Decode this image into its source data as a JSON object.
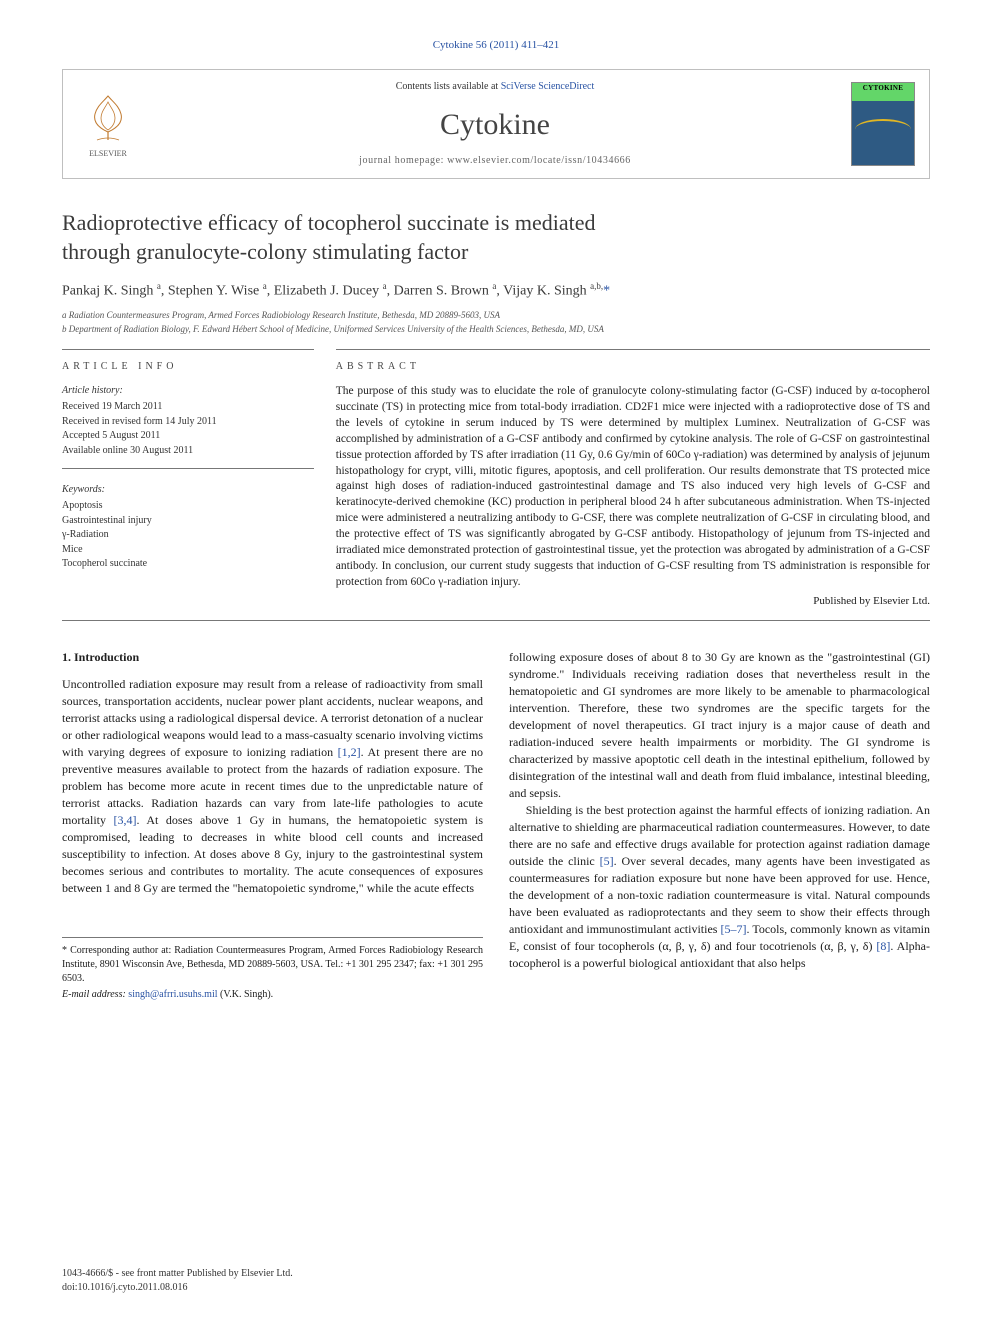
{
  "citation": "Cytokine 56 (2011) 411–421",
  "masthead": {
    "contents_prefix": "Contents lists available at ",
    "contents_link": "SciVerse ScienceDirect",
    "journal": "Cytokine",
    "homepage_prefix": "journal homepage: ",
    "homepage_url": "www.elsevier.com/locate/issn/10434666",
    "publisher": "ELSEVIER",
    "cover_label": "CYTOKINE"
  },
  "title_line1": "Radioprotective efficacy of tocopherol succinate is mediated",
  "title_line2": "through granulocyte-colony stimulating factor",
  "authors_html": "Pankaj K. Singh <sup>a</sup>, Stephen Y. Wise <sup>a</sup>, Elizabeth J. Ducey <sup>a</sup>, Darren S. Brown <sup>a</sup>, Vijay K. Singh <sup>a,b,</sup><span class=\"star\">*</span>",
  "affiliations": [
    "a Radiation Countermeasures Program, Armed Forces Radiobiology Research Institute, Bethesda, MD 20889-5603, USA",
    "b Department of Radiation Biology, F. Edward Hébert School of Medicine, Uniformed Services University of the Health Sciences, Bethesda, MD, USA"
  ],
  "article_info": {
    "heading": "article info",
    "history_label": "Article history:",
    "history": [
      "Received 19 March 2011",
      "Received in revised form 14 July 2011",
      "Accepted 5 August 2011",
      "Available online 30 August 2011"
    ],
    "keywords_label": "Keywords:",
    "keywords": [
      "Apoptosis",
      "Gastrointestinal injury",
      "γ-Radiation",
      "Mice",
      "Tocopherol succinate"
    ]
  },
  "abstract": {
    "heading": "abstract",
    "text": "The purpose of this study was to elucidate the role of granulocyte colony-stimulating factor (G-CSF) induced by α-tocopherol succinate (TS) in protecting mice from total-body irradiation. CD2F1 mice were injected with a radioprotective dose of TS and the levels of cytokine in serum induced by TS were determined by multiplex Luminex. Neutralization of G-CSF was accomplished by administration of a G-CSF antibody and confirmed by cytokine analysis. The role of G-CSF on gastrointestinal tissue protection afforded by TS after irradiation (11 Gy, 0.6 Gy/min of 60Co γ-radiation) was determined by analysis of jejunum histopathology for crypt, villi, mitotic figures, apoptosis, and cell proliferation. Our results demonstrate that TS protected mice against high doses of radiation-induced gastrointestinal damage and TS also induced very high levels of G-CSF and keratinocyte-derived chemokine (KC) production in peripheral blood 24 h after subcutaneous administration. When TS-injected mice were administered a neutralizing antibody to G-CSF, there was complete neutralization of G-CSF in circulating blood, and the protective effect of TS was significantly abrogated by G-CSF antibody. Histopathology of jejunum from TS-injected and irradiated mice demonstrated protection of gastrointestinal tissue, yet the protection was abrogated by administration of a G-CSF antibody. In conclusion, our current study suggests that induction of G-CSF resulting from TS administration is responsible for protection from 60Co γ-radiation injury.",
    "published_by": "Published by Elsevier Ltd."
  },
  "section1_head": "1. Introduction",
  "para1": "Uncontrolled radiation exposure may result from a release of radioactivity from small sources, transportation accidents, nuclear power plant accidents, nuclear weapons, and terrorist attacks using a radiological dispersal device. A terrorist detonation of a nuclear or other radiological weapons would lead to a mass-casualty scenario involving victims with varying degrees of exposure to ionizing radiation <span class=\"cite\">[1,2]</span>. At present there are no preventive measures available to protect from the hazards of radiation exposure. The problem has become more acute in recent times due to the unpredictable nature of terrorist attacks. Radiation hazards can vary from late-life pathologies to acute mortality <span class=\"cite\">[3,4]</span>. At doses above 1 Gy in humans, the hematopoietic system is compromised, leading to decreases in white blood cell counts and increased susceptibility to infection. At doses above 8 Gy, injury to the gastrointestinal system becomes serious and contributes to mortality. The acute consequences of exposures between 1 and 8 Gy are termed the \"hematopoietic syndrome,\" while the acute effects",
  "para2": "following exposure doses of about 8 to 30 Gy are known as the \"gastrointestinal (GI) syndrome.\" Individuals receiving radiation doses that nevertheless result in the hematopoietic and GI syndromes are more likely to be amenable to pharmacological intervention. Therefore, these two syndromes are the specific targets for the development of novel therapeutics. GI tract injury is a major cause of death and radiation-induced severe health impairments or morbidity. The GI syndrome is characterized by massive apoptotic cell death in the intestinal epithelium, followed by disintegration of the intestinal wall and death from fluid imbalance, intestinal bleeding, and sepsis.",
  "para3": "Shielding is the best protection against the harmful effects of ionizing radiation. An alternative to shielding are pharmaceutical radiation countermeasures. However, to date there are no safe and effective drugs available for protection against radiation damage outside the clinic <span class=\"cite\">[5]</span>. Over several decades, many agents have been investigated as countermeasures for radiation exposure but none have been approved for use. Hence, the development of a non-toxic radiation countermeasure is vital. Natural compounds have been evaluated as radioprotectants and they seem to show their effects through antioxidant and immunostimulant activities <span class=\"cite\">[5–7]</span>. Tocols, commonly known as vitamin E, consist of four tocopherols (α, β, γ, δ) and four tocotrienols (α, β, γ, δ) <span class=\"cite\">[8]</span>. Alpha-tocopherol is a powerful biological antioxidant that also helps",
  "footnote": {
    "corr": "* Corresponding author at: Radiation Countermeasures Program, Armed Forces Radiobiology Research Institute, 8901 Wisconsin Ave, Bethesda, MD 20889-5603, USA. Tel.: +1 301 295 2347; fax: +1 301 295 6503.",
    "email_label": "E-mail address: ",
    "email": "singh@afrri.usuhs.mil",
    "email_suffix": " (V.K. Singh)."
  },
  "bottom": {
    "copyright": "1043-4666/$ - see front matter Published by Elsevier Ltd.",
    "doi": "doi:10.1016/j.cyto.2011.08.016"
  }
}
